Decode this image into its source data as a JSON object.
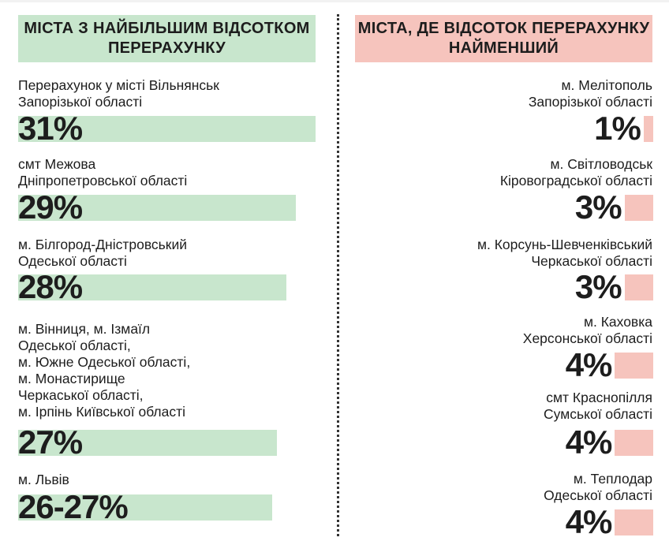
{
  "chart_data": {
    "type": "bar",
    "title_left": "МІСТА З НАЙБІЛЬШИМ ВІДСОТКОМ ПЕРЕРАХУНКУ",
    "title_right": "МІСТА, ДЕ ВІДСОТОК ПЕРЕРАХУНКУ НАЙМЕНШИЙ",
    "colors": {
      "left": "#c8e6cd",
      "right": "#f6c4bd"
    },
    "left": [
      {
        "label": "Перерахунок у місті Вільнянськ\nЗапорізької області",
        "value": 31,
        "text": "31%"
      },
      {
        "label": "смт Межова\nДніпропетровської області",
        "value": 29,
        "text": "29%"
      },
      {
        "label": "м. Білгород-Дністровський\nОдеської області",
        "value": 28,
        "text": "28%"
      },
      {
        "label": "м. Вінниця, м. Ізмаїл\nОдеської області,\nм. Южне Одеської області,\nм. Монастирище\nЧеркаської області,\nм. Ірпінь Київської області",
        "value": 27,
        "text": "27%"
      },
      {
        "label": "м. Львів",
        "value": 26.5,
        "text": "26-27%"
      }
    ],
    "right": [
      {
        "label": "м. Мелітополь\nЗапорізької області",
        "value": 1,
        "text": "1%"
      },
      {
        "label": "м. Світловодськ\nКіровоградської області",
        "value": 3,
        "text": "3%"
      },
      {
        "label": "м. Корсунь-Шевченківський\nЧеркаської області",
        "value": 3,
        "text": "3%"
      },
      {
        "label": "м. Каховка\nХерсонської області",
        "value": 4,
        "text": "4%"
      },
      {
        "label": "смт Краснопілля\nСумської області",
        "value": 4,
        "text": "4%"
      },
      {
        "label": "м. Теплодар\nОдеської області",
        "value": 4,
        "text": "4%"
      }
    ]
  }
}
